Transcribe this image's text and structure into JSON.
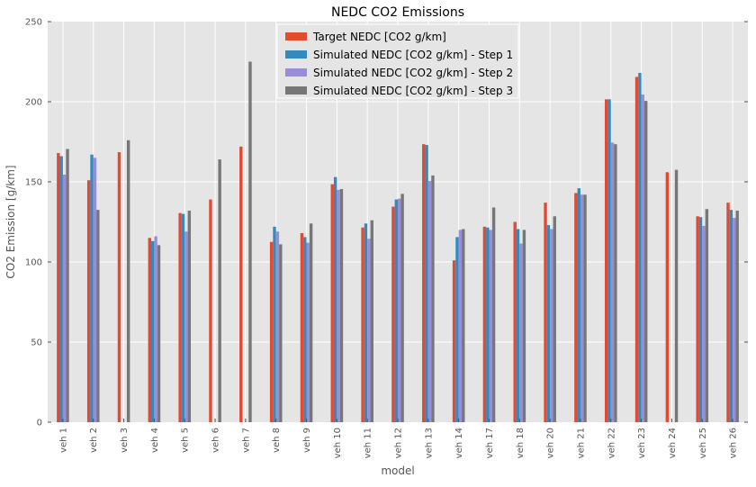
{
  "chart_data": {
    "type": "bar",
    "title": "NEDC CO2 Emissions",
    "xlabel": "model",
    "ylabel": "CO2 Emission [g/km]",
    "ylim": [
      0,
      250
    ],
    "yticks": [
      0,
      50,
      100,
      150,
      200,
      250
    ],
    "grid": true,
    "legend_position": "top-center",
    "categories": [
      "veh 1",
      "veh 2",
      "veh 3",
      "veh 4",
      "veh 5",
      "veh 6",
      "veh 7",
      "veh 8",
      "veh 9",
      "veh 10",
      "veh 11",
      "veh 12",
      "veh 13",
      "veh 14",
      "veh 17",
      "veh 18",
      "veh 20",
      "veh 21",
      "veh 22",
      "veh 23",
      "veh 24",
      "veh 25",
      "veh 26"
    ],
    "series": [
      {
        "name": "Target NEDC [CO2 g/km]",
        "color": "#E24A33",
        "values": [
          168,
          151,
          168.5,
          115,
          130.5,
          139,
          172,
          112.5,
          118,
          148.5,
          121.5,
          134.5,
          173.5,
          101,
          122,
          125,
          137,
          143,
          201.5,
          215.5,
          156,
          128.5,
          137
        ]
      },
      {
        "name": "Simulated NEDC [CO2 g/km] - Step 1",
        "color": "#348ABD",
        "values": [
          166,
          167,
          null,
          113,
          130,
          null,
          null,
          122,
          115.5,
          153,
          124,
          139,
          173,
          115.5,
          121.5,
          120.5,
          123,
          146,
          201.5,
          218,
          null,
          128,
          132.5
        ]
      },
      {
        "name": "Simulated NEDC [CO2 g/km] - Step 2",
        "color": "#988ED5",
        "values": [
          154.5,
          165,
          null,
          116,
          119,
          null,
          null,
          119,
          112,
          145,
          114.5,
          139.5,
          150.5,
          120,
          120,
          111.5,
          120.5,
          142,
          174.5,
          204.5,
          null,
          122.5,
          127.5
        ]
      },
      {
        "name": "Simulated NEDC [CO2 g/km] - Step 3",
        "color": "#777777",
        "values": [
          170.5,
          132.5,
          176,
          110.5,
          132,
          164,
          225,
          111,
          124,
          145.5,
          126,
          142.5,
          154,
          120.5,
          134,
          120,
          128.5,
          142,
          173.5,
          200.5,
          157.5,
          133,
          132
        ]
      }
    ]
  }
}
